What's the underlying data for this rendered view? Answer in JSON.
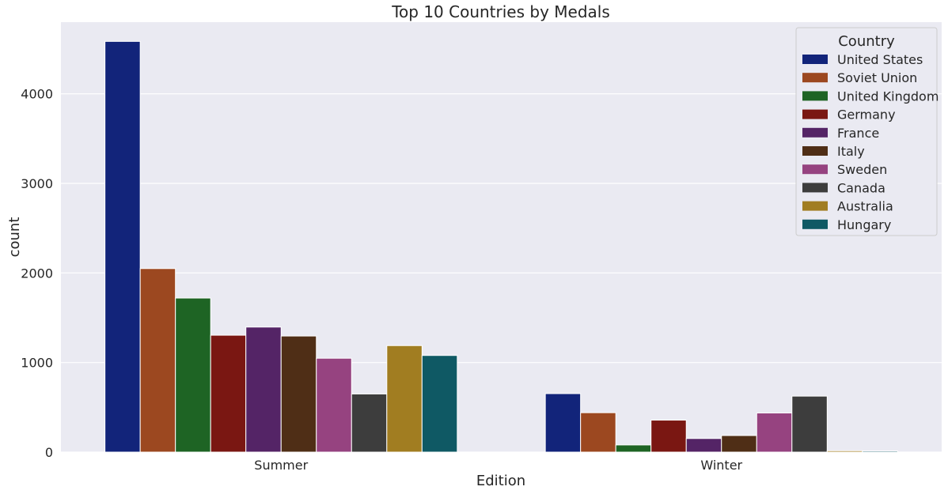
{
  "chart_data": {
    "type": "bar",
    "title": "Top 10 Countries by Medals",
    "xlabel": "Edition",
    "ylabel": "count",
    "categories": [
      "Summer",
      "Winter"
    ],
    "ylim": [
      0,
      4800
    ],
    "yticks": [
      0,
      1000,
      2000,
      3000,
      4000
    ],
    "grid": true,
    "legend": {
      "title": "Country",
      "position": "top-right"
    },
    "series": [
      {
        "name": "United States",
        "color": "#12247a",
        "values": [
          4585,
          653
        ]
      },
      {
        "name": "Soviet Union",
        "color": "#9c4820",
        "values": [
          2049,
          440
        ]
      },
      {
        "name": "United Kingdom",
        "color": "#1e6424",
        "values": [
          1720,
          80
        ]
      },
      {
        "name": "Germany",
        "color": "#7a1712",
        "values": [
          1305,
          357
        ]
      },
      {
        "name": "France",
        "color": "#542466",
        "values": [
          1396,
          152
        ]
      },
      {
        "name": "Italy",
        "color": "#4f2e16",
        "values": [
          1296,
          185
        ]
      },
      {
        "name": "Sweden",
        "color": "#964380",
        "values": [
          1048,
          437
        ]
      },
      {
        "name": "Canada",
        "color": "#3d3d3d",
        "values": [
          649,
          625
        ]
      },
      {
        "name": "Australia",
        "color": "#a17d21",
        "values": [
          1189,
          15
        ]
      },
      {
        "name": "Hungary",
        "color": "#0f5964",
        "values": [
          1079,
          12
        ]
      }
    ]
  }
}
